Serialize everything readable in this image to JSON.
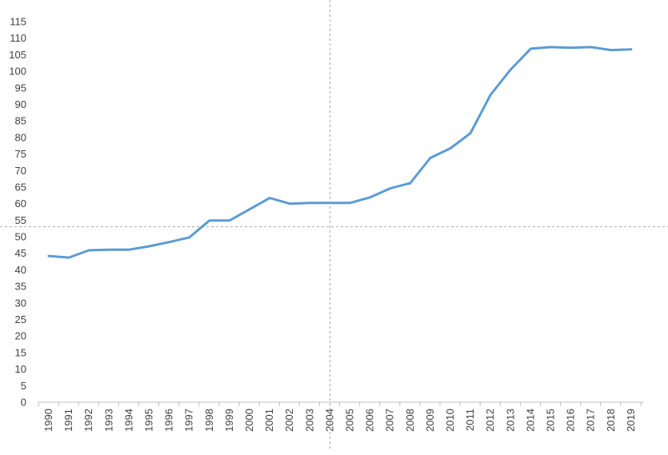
{
  "chart_data": {
    "type": "line",
    "title": "",
    "xlabel": "",
    "ylabel": "",
    "categories": [
      "1990",
      "1991",
      "1992",
      "1993",
      "1994",
      "1995",
      "1996",
      "1997",
      "1998",
      "1999",
      "2000",
      "2001",
      "2002",
      "2003",
      "2004",
      "2005",
      "2006",
      "2007",
      "2008",
      "2009",
      "2010",
      "2011",
      "2012",
      "2013",
      "2014",
      "2015",
      "2016",
      "2017",
      "2018",
      "2019"
    ],
    "series": [
      {
        "values": [
          44.2,
          43.7,
          45.9,
          46.1,
          46.1,
          47.1,
          48.4,
          49.8,
          54.9,
          54.9,
          58.3,
          61.7,
          60.0,
          60.2,
          60.2,
          60.2,
          61.9,
          64.6,
          66.2,
          73.8,
          76.7,
          81.3,
          92.9,
          100.5,
          106.8,
          107.3,
          107.1,
          107.3,
          106.4,
          106.6
        ],
        "color": "#5b9bd5"
      }
    ],
    "ylim": [
      0,
      115
    ],
    "yticks": [
      0,
      5,
      10,
      15,
      20,
      25,
      30,
      35,
      40,
      45,
      50,
      55,
      60,
      65,
      70,
      75,
      80,
      85,
      90,
      95,
      100,
      105,
      110,
      115
    ],
    "grid": false,
    "legend": "none",
    "reference_lines": {
      "vertical_at_category": "2004",
      "horizontal_at_value": 53
    },
    "colors": {
      "line": "#5b9bd5",
      "axis": "#bfbfbf",
      "reference": "#a6a6a6",
      "text": "#404040"
    }
  }
}
